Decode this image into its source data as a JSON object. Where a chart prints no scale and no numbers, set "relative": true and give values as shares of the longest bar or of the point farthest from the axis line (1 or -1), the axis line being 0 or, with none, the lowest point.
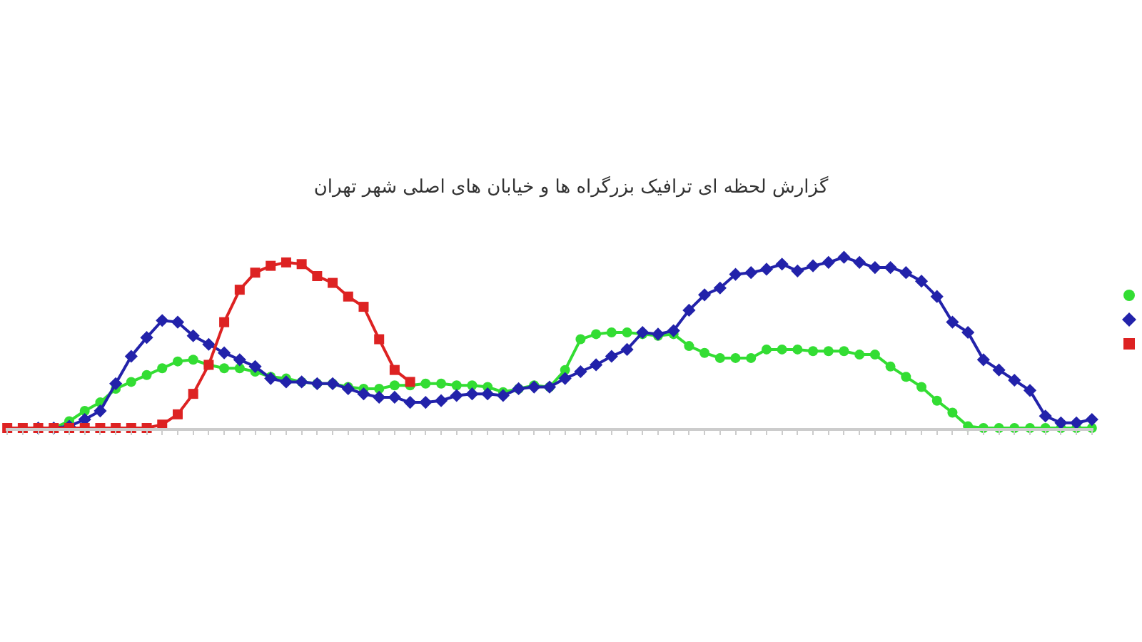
{
  "chart_data": {
    "type": "line",
    "title": "گزارش لحظه ای ترافیک بزرگراه ها و خیابان های اصلی شهر تهران",
    "relative": true,
    "line_style": "solid",
    "categories": [
      null,
      null,
      null,
      null,
      null,
      null,
      null,
      null,
      null,
      null,
      null,
      null,
      null,
      null,
      null,
      null,
      null,
      null,
      null,
      null,
      null,
      null,
      null,
      null,
      null,
      null,
      null,
      null,
      null,
      null,
      null,
      null,
      null,
      null,
      null,
      null,
      null,
      null,
      null,
      null,
      null,
      null,
      null,
      null,
      null,
      null,
      null,
      null,
      null,
      null,
      null,
      null,
      null,
      null,
      null,
      null,
      null,
      null,
      null,
      null,
      null,
      null,
      null,
      null,
      null,
      null,
      null,
      null,
      null,
      null,
      null
    ],
    "series": [
      {
        "color": "#33dd33",
        "marker": "circle",
        "values": [
          null,
          null,
          0,
          0,
          0.04,
          0.1,
          0.15,
          0.23,
          0.27,
          0.31,
          0.35,
          0.39,
          0.4,
          0.37,
          0.35,
          0.35,
          0.33,
          0.3,
          0.29,
          0.27,
          0.26,
          0.26,
          0.24,
          0.23,
          0.23,
          0.25,
          0.25,
          0.26,
          0.26,
          0.25,
          0.25,
          0.24,
          0.21,
          0.23,
          0.25,
          0.24,
          0.34,
          0.52,
          0.55,
          0.56,
          0.56,
          0.55,
          0.54,
          0.55,
          0.48,
          0.44,
          0.41,
          0.41,
          0.41,
          0.46,
          0.46,
          0.46,
          0.45,
          0.45,
          0.45,
          0.43,
          0.43,
          0.36,
          0.3,
          0.24,
          0.16,
          0.09,
          0.01,
          0,
          0,
          0,
          0,
          0,
          0,
          0,
          0
        ]
      },
      {
        "color": "#2222aa",
        "marker": "diamond",
        "values": [
          null,
          null,
          0,
          0,
          0.01,
          0.05,
          0.1,
          0.26,
          0.42,
          0.53,
          0.63,
          0.62,
          0.54,
          0.49,
          0.44,
          0.4,
          0.36,
          0.29,
          0.27,
          0.27,
          0.26,
          0.26,
          0.23,
          0.2,
          0.18,
          0.18,
          0.15,
          0.15,
          0.16,
          0.19,
          0.2,
          0.2,
          0.19,
          0.23,
          0.24,
          0.24,
          0.29,
          0.33,
          0.37,
          0.42,
          0.46,
          0.56,
          0.55,
          0.57,
          0.69,
          0.78,
          0.82,
          0.9,
          0.91,
          0.93,
          0.96,
          0.92,
          0.95,
          0.97,
          1,
          0.97,
          0.94,
          0.94,
          0.91,
          0.86,
          0.77,
          0.62,
          0.56,
          0.4,
          0.34,
          0.28,
          0.22,
          0.07,
          0.03,
          0.03,
          0.05
        ]
      },
      {
        "color": "#dd2222",
        "marker": "square",
        "values": [
          0,
          0,
          0,
          0,
          0,
          0,
          0,
          0,
          0,
          0,
          0.02,
          0.08,
          0.2,
          0.37,
          0.62,
          0.81,
          0.91,
          0.95,
          0.97,
          0.96,
          0.89,
          0.85,
          0.77,
          0.71,
          0.52,
          0.34,
          0.27,
          null,
          null,
          null,
          null,
          null,
          null,
          null,
          null,
          null,
          null,
          null,
          null,
          null,
          null,
          null,
          null,
          null,
          null,
          null,
          null,
          null,
          null,
          null,
          null,
          null,
          null,
          null,
          null,
          null,
          null,
          null,
          null,
          null,
          null,
          null,
          null,
          null,
          null,
          null,
          null,
          null,
          null,
          null,
          null
        ]
      }
    ]
  }
}
